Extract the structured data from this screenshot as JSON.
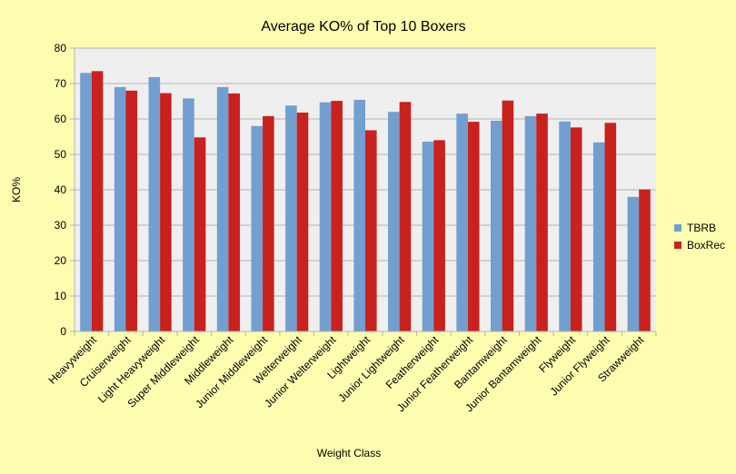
{
  "chart_data": {
    "type": "bar",
    "title": "Average KO% of Top 10 Boxers",
    "xlabel": "Weight Class",
    "ylabel": "KO%",
    "ylim": [
      0,
      80
    ],
    "yticks": [
      0,
      10,
      20,
      30,
      40,
      50,
      60,
      70,
      80
    ],
    "grid": true,
    "legend_position": "right",
    "categories": [
      "Heavyweight",
      "Cruiserweight",
      "Light Heavyweight",
      "Super Middleweight",
      "Middleweight",
      "Junior Middleweight",
      "Welterweight",
      "Junior Welterweight",
      "Lightweight",
      "Junior Lightweight",
      "Featherweight",
      "Junior Featherweight",
      "Bantamweight",
      "Junior Bantamweight",
      "Flyweight",
      "Junior Flyweight",
      "Strawweight"
    ],
    "series": [
      {
        "name": "TBRB",
        "color": "#729fcf",
        "values": [
          73,
          69,
          71.8,
          65.8,
          69,
          58,
          63.8,
          64.7,
          65.4,
          62,
          53.6,
          61.5,
          59.5,
          60.8,
          59.3,
          53.4,
          38
        ]
      },
      {
        "name": "BoxRec",
        "color": "#c9211e",
        "values": [
          73.5,
          68,
          67.3,
          54.8,
          67.2,
          60.8,
          61.8,
          65.1,
          56.8,
          64.8,
          54,
          59.2,
          65.2,
          61.5,
          57.6,
          58.9,
          40.1
        ]
      }
    ]
  }
}
